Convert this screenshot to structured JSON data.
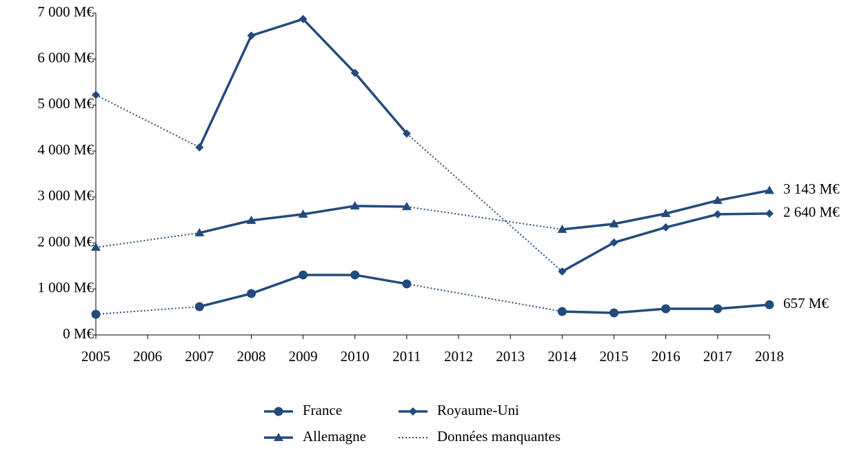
{
  "chart_data": {
    "type": "line",
    "categories": [
      "2005",
      "2006",
      "2007",
      "2008",
      "2009",
      "2010",
      "2011",
      "2012",
      "2013",
      "2014",
      "2015",
      "2016",
      "2017",
      "2018"
    ],
    "series": [
      {
        "name": "France",
        "color": "#234a7d",
        "marker": "circle",
        "values": [
          450,
          null,
          615,
          900,
          1305,
          1305,
          1110,
          null,
          null,
          510,
          480,
          570,
          570,
          657
        ],
        "value_labels": [
          null,
          null,
          null,
          null,
          null,
          null,
          null,
          null,
          null,
          null,
          null,
          null,
          null,
          "657 M€"
        ]
      },
      {
        "name": "Royaume-Uni",
        "color": "#234a7d",
        "marker": "diamond",
        "values": [
          5220,
          null,
          4080,
          6510,
          6870,
          5700,
          4380,
          null,
          null,
          1380,
          2010,
          2340,
          2625,
          2640
        ],
        "value_labels": [
          null,
          null,
          null,
          null,
          null,
          null,
          null,
          null,
          null,
          null,
          null,
          null,
          null,
          "2 640 M€"
        ]
      },
      {
        "name": "Allemagne",
        "color": "#234a7d",
        "marker": "triangle",
        "values": [
          1905,
          null,
          2220,
          2490,
          2625,
          2805,
          2790,
          null,
          null,
          2295,
          2415,
          2640,
          2925,
          3143
        ],
        "value_labels": [
          null,
          null,
          null,
          null,
          null,
          null,
          null,
          null,
          null,
          null,
          null,
          null,
          null,
          "3 143 M€"
        ]
      }
    ],
    "missing_data_label": "Données manquantes",
    "ylim": [
      0,
      7000
    ],
    "yticks": [
      {
        "value": 0,
        "label": "0 M€"
      },
      {
        "value": 1000,
        "label": "1 000 M€"
      },
      {
        "value": 2000,
        "label": "2 000 M€"
      },
      {
        "value": 3000,
        "label": "3 000 M€"
      },
      {
        "value": 4000,
        "label": "4 000 M€"
      },
      {
        "value": 5000,
        "label": "5 000 M€"
      },
      {
        "value": 6000,
        "label": "6 000 M€"
      },
      {
        "value": 7000,
        "label": "7 000 M€"
      }
    ],
    "grid": false
  }
}
